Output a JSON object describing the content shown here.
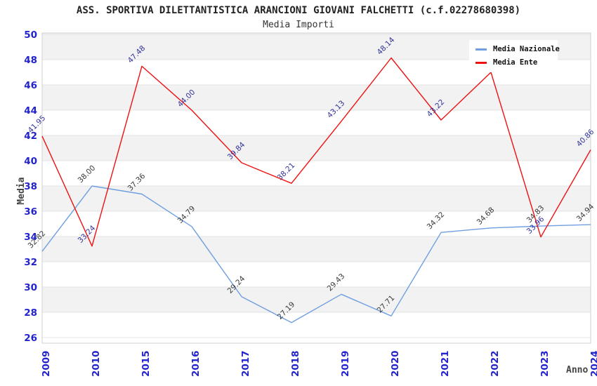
{
  "chart_data": {
    "type": "line",
    "title": "ASS. SPORTIVA DILETTANTISTICA ARANCIONI GIOVANI FALCHETTI (c.f.02278680398)",
    "subtitle": "Media Importi",
    "xlabel": "Anno",
    "ylabel": "Media",
    "ylim": [
      26,
      50
    ],
    "y_ticks": [
      50,
      48,
      46,
      44,
      42,
      40,
      38,
      36,
      34,
      32,
      30,
      28,
      26
    ],
    "grid": "horizontal-bands",
    "legend_position": "top-right",
    "categories": [
      "2009",
      "2010",
      "2015",
      "2016",
      "2017",
      "2018",
      "2019",
      "2020",
      "2021",
      "2022",
      "2023",
      "2024"
    ],
    "series": [
      {
        "name": "Media Nazionale",
        "color": "#6f9fe0",
        "label_color": "#3a3a3a",
        "values": [
          32.82,
          38.0,
          37.36,
          34.79,
          29.24,
          27.19,
          29.43,
          27.71,
          34.32,
          34.68,
          34.83,
          34.94
        ],
        "point_labels": [
          "32.82",
          "38.00",
          "37.36",
          "34.79",
          "29.24",
          "27.19",
          "29.43",
          "27.71",
          "34.32",
          "34.68",
          "34.83",
          "34.94"
        ]
      },
      {
        "name": "Media Ente",
        "color": "#ee1111",
        "label_color": "#32329b",
        "values": [
          41.95,
          33.24,
          47.48,
          44.0,
          39.84,
          38.21,
          43.13,
          48.14,
          43.22,
          47.0,
          33.96,
          40.86
        ],
        "point_labels": [
          "41.95",
          "33.24",
          "47.48",
          "44.00",
          "39.84",
          "38.21",
          "43.13",
          "48.14",
          "43.22",
          "",
          "33.96",
          "40.86"
        ]
      }
    ]
  },
  "colors": {
    "tick_label": "#2323cc",
    "band": "#f2f2f2",
    "gridline": "#e4e4e4",
    "frame": "#d0d0d0",
    "axis_title": "#444444",
    "title": "#222222",
    "legend_bg": "#ffffff"
  }
}
